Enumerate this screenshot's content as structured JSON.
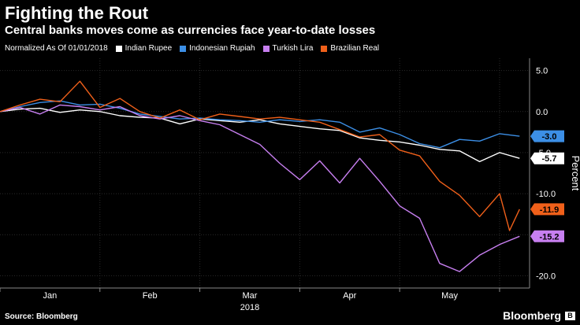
{
  "header": {
    "title": "Fighting the Rout",
    "subtitle": "Central banks moves come as currencies face year-to-date losses"
  },
  "legend": {
    "note": "Normalized As Of 01/01/2018",
    "items": [
      {
        "label": "Indian Rupee",
        "color": "#ffffff"
      },
      {
        "label": "Indonesian Rupiah",
        "color": "#3c8fe6"
      },
      {
        "label": "Turkish Lira",
        "color": "#c77ff0"
      },
      {
        "label": "Brazilian Real",
        "color": "#f0601a"
      }
    ]
  },
  "footer": {
    "source": "Source: Bloomberg",
    "brand": "Bloomberg"
  },
  "chart_data": {
    "type": "line",
    "title": "Fighting the Rout",
    "ylabel": "Percent",
    "xlabel": "2018",
    "ylim": [
      -21.5,
      6.5
    ],
    "yticks": [
      5.0,
      0.0,
      -5.0,
      -10.0,
      -15.0,
      -20.0
    ],
    "ytick_labels": [
      "5.0",
      "0.0",
      "-5.0",
      "-10.0",
      "-15.0",
      "-20.0"
    ],
    "xlim": [
      0,
      5.3
    ],
    "xticks": [
      0.5,
      1.5,
      2.5,
      3.5,
      4.5
    ],
    "xtick_labels": [
      "Jan",
      "Feb",
      "Mar",
      "Apr",
      "May"
    ],
    "grid": true,
    "series": [
      {
        "name": "Indian Rupee",
        "color": "#ffffff",
        "end_label": "-5.7",
        "end_value": -5.7,
        "x": [
          0,
          0.2,
          0.4,
          0.6,
          0.8,
          1.0,
          1.2,
          1.4,
          1.6,
          1.8,
          2.0,
          2.2,
          2.4,
          2.6,
          2.8,
          3.0,
          3.2,
          3.4,
          3.6,
          3.8,
          4.0,
          4.2,
          4.4,
          4.6,
          4.8,
          5.0,
          5.2
        ],
        "y": [
          0.0,
          0.3,
          0.4,
          -0.1,
          0.2,
          0.0,
          -0.5,
          -0.7,
          -0.8,
          -1.5,
          -0.9,
          -1.1,
          -1.3,
          -1.0,
          -1.5,
          -1.8,
          -2.1,
          -2.3,
          -3.2,
          -3.5,
          -3.7,
          -4.1,
          -4.6,
          -4.8,
          -6.1,
          -5.0,
          -5.7
        ]
      },
      {
        "name": "Indonesian Rupiah",
        "color": "#3c8fe6",
        "end_label": "-3.0",
        "end_value": -3.0,
        "x": [
          0,
          0.2,
          0.4,
          0.6,
          0.8,
          1.0,
          1.2,
          1.4,
          1.6,
          1.8,
          2.0,
          2.2,
          2.4,
          2.6,
          2.8,
          3.0,
          3.2,
          3.4,
          3.6,
          3.8,
          4.0,
          4.2,
          4.4,
          4.6,
          4.8,
          5.0,
          5.2
        ],
        "y": [
          0.0,
          0.6,
          1.1,
          1.3,
          0.8,
          0.9,
          0.4,
          -0.3,
          -0.6,
          -0.9,
          -0.8,
          -1.0,
          -1.1,
          -1.3,
          -1.0,
          -1.2,
          -1.0,
          -1.3,
          -2.5,
          -2.0,
          -2.8,
          -3.9,
          -4.4,
          -3.4,
          -3.6,
          -2.7,
          -3.0
        ]
      },
      {
        "name": "Turkish Lira",
        "color": "#c77ff0",
        "end_label": "-15.2",
        "end_value": -15.2,
        "x": [
          0,
          0.2,
          0.4,
          0.6,
          0.8,
          1.0,
          1.2,
          1.4,
          1.6,
          1.8,
          2.0,
          2.2,
          2.4,
          2.6,
          2.8,
          3.0,
          3.2,
          3.4,
          3.6,
          3.8,
          4.0,
          4.2,
          4.4,
          4.6,
          4.8,
          5.0,
          5.2
        ],
        "y": [
          0.0,
          0.5,
          -0.3,
          0.8,
          0.6,
          0.2,
          0.6,
          -0.5,
          -0.9,
          -0.5,
          -1.1,
          -1.6,
          -2.8,
          -4.0,
          -6.3,
          -8.3,
          -6.0,
          -8.7,
          -5.7,
          -8.5,
          -11.5,
          -13.0,
          -18.5,
          -19.5,
          -17.5,
          -16.2,
          -15.2
        ]
      },
      {
        "name": "Brazilian Real",
        "color": "#f0601a",
        "end_label": "-11.9",
        "end_value": -11.9,
        "x": [
          0,
          0.2,
          0.4,
          0.6,
          0.8,
          1.0,
          1.2,
          1.4,
          1.6,
          1.8,
          2.0,
          2.2,
          2.4,
          2.6,
          2.8,
          3.0,
          3.2,
          3.4,
          3.6,
          3.8,
          4.0,
          4.2,
          4.4,
          4.6,
          4.8,
          5.0,
          5.1,
          5.2
        ],
        "y": [
          0.0,
          0.8,
          1.5,
          1.2,
          3.7,
          0.5,
          1.6,
          0.0,
          -0.8,
          0.2,
          -1.0,
          -0.3,
          -0.6,
          -0.9,
          -0.7,
          -1.0,
          -1.3,
          -2.2,
          -3.1,
          -2.8,
          -4.7,
          -5.4,
          -8.5,
          -10.2,
          -12.8,
          -10.0,
          -14.5,
          -11.9
        ]
      }
    ]
  }
}
